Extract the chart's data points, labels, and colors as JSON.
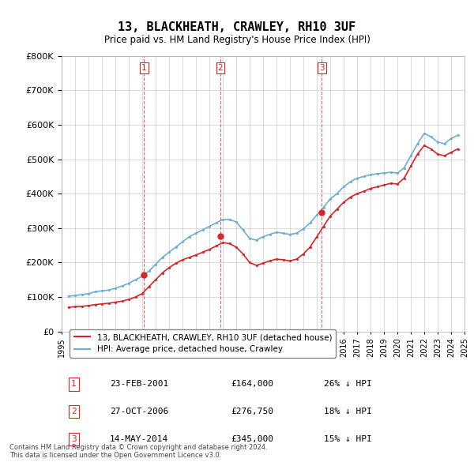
{
  "title": "13, BLACKHEATH, CRAWLEY, RH10 3UF",
  "subtitle": "Price paid vs. HM Land Registry's House Price Index (HPI)",
  "footer": "Contains HM Land Registry data © Crown copyright and database right 2024.\nThis data is licensed under the Open Government Licence v3.0.",
  "ylim": [
    0,
    800000
  ],
  "yticks": [
    0,
    100000,
    200000,
    300000,
    400000,
    500000,
    600000,
    700000,
    800000
  ],
  "sale_dates_num": [
    2001.14,
    2006.82,
    2014.37
  ],
  "sale_prices": [
    164000,
    276750,
    345000
  ],
  "sale_labels": [
    "1",
    "2",
    "3"
  ],
  "sale_table": [
    [
      "1",
      "23-FEB-2001",
      "£164,000",
      "26% ↓ HPI"
    ],
    [
      "2",
      "27-OCT-2006",
      "£276,750",
      "18% ↓ HPI"
    ],
    [
      "3",
      "14-MAY-2014",
      "£345,000",
      "15% ↓ HPI"
    ]
  ],
  "legend_line1": "13, BLACKHEATH, CRAWLEY, RH10 3UF (detached house)",
  "legend_line2": "HPI: Average price, detached house, Crawley",
  "hpi_color": "#6baed6",
  "price_color": "#d62728",
  "vline_color": "#d62728",
  "background_color": "#ffffff",
  "grid_color": "#cccccc",
  "hpi_x": [
    1995.5,
    1996.0,
    1996.5,
    1997.0,
    1997.5,
    1998.0,
    1998.5,
    1999.0,
    1999.5,
    2000.0,
    2000.5,
    2001.0,
    2001.5,
    2002.0,
    2002.5,
    2003.0,
    2003.5,
    2004.0,
    2004.5,
    2005.0,
    2005.5,
    2006.0,
    2006.5,
    2007.0,
    2007.5,
    2008.0,
    2008.5,
    2009.0,
    2009.5,
    2010.0,
    2010.5,
    2011.0,
    2011.5,
    2012.0,
    2012.5,
    2013.0,
    2013.5,
    2014.0,
    2014.5,
    2015.0,
    2015.5,
    2016.0,
    2016.5,
    2017.0,
    2017.5,
    2018.0,
    2018.5,
    2019.0,
    2019.5,
    2020.0,
    2020.5,
    2021.0,
    2021.5,
    2022.0,
    2022.5,
    2023.0,
    2023.5,
    2024.0,
    2024.5
  ],
  "hpi_y": [
    103000,
    104000,
    107000,
    110000,
    115000,
    118000,
    120000,
    125000,
    132000,
    140000,
    150000,
    160000,
    175000,
    195000,
    215000,
    230000,
    245000,
    260000,
    275000,
    285000,
    295000,
    305000,
    315000,
    325000,
    325000,
    318000,
    295000,
    270000,
    265000,
    275000,
    282000,
    288000,
    285000,
    282000,
    285000,
    298000,
    315000,
    338000,
    360000,
    385000,
    400000,
    420000,
    435000,
    445000,
    450000,
    455000,
    458000,
    460000,
    462000,
    460000,
    475000,
    510000,
    545000,
    575000,
    565000,
    550000,
    545000,
    560000,
    570000
  ],
  "price_x": [
    1995.5,
    1996.0,
    1996.5,
    1997.0,
    1997.5,
    1998.0,
    1998.5,
    1999.0,
    1999.5,
    2000.0,
    2000.5,
    2001.0,
    2001.5,
    2002.0,
    2002.5,
    2003.0,
    2003.5,
    2004.0,
    2004.5,
    2005.0,
    2005.5,
    2006.0,
    2006.5,
    2007.0,
    2007.5,
    2008.0,
    2008.5,
    2009.0,
    2009.5,
    2010.0,
    2010.5,
    2011.0,
    2011.5,
    2012.0,
    2012.5,
    2013.0,
    2013.5,
    2014.0,
    2014.5,
    2015.0,
    2015.5,
    2016.0,
    2016.5,
    2017.0,
    2017.5,
    2018.0,
    2018.5,
    2019.0,
    2019.5,
    2020.0,
    2020.5,
    2021.0,
    2021.5,
    2022.0,
    2022.5,
    2023.0,
    2023.5,
    2024.0,
    2024.5
  ],
  "price_y": [
    70000,
    72000,
    73000,
    75000,
    78000,
    80000,
    82000,
    85000,
    88000,
    93000,
    100000,
    110000,
    130000,
    150000,
    170000,
    185000,
    198000,
    208000,
    215000,
    222000,
    230000,
    238000,
    248000,
    258000,
    255000,
    245000,
    225000,
    200000,
    192000,
    198000,
    205000,
    210000,
    208000,
    205000,
    210000,
    225000,
    245000,
    275000,
    305000,
    335000,
    355000,
    375000,
    390000,
    400000,
    407000,
    415000,
    420000,
    425000,
    430000,
    428000,
    445000,
    480000,
    515000,
    540000,
    530000,
    515000,
    510000,
    520000,
    530000
  ],
  "xmin": 1995.0,
  "xmax": 2025.0,
  "xtick_years": [
    1995,
    1996,
    1997,
    1998,
    1999,
    2000,
    2001,
    2002,
    2003,
    2004,
    2005,
    2006,
    2007,
    2008,
    2009,
    2010,
    2011,
    2012,
    2013,
    2014,
    2015,
    2016,
    2017,
    2018,
    2019,
    2020,
    2021,
    2022,
    2023,
    2024,
    2025
  ]
}
